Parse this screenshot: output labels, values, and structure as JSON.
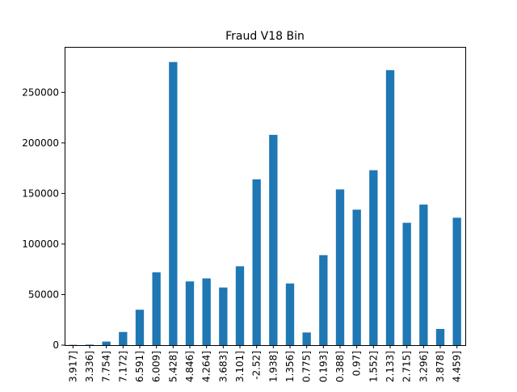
{
  "chart_data": {
    "type": "bar",
    "title": "Fraud V18 Bin",
    "xlabel": "",
    "ylabel": "",
    "categories": [
      "3.917]",
      "3.336]",
      "7.754]",
      "7.172]",
      "6.591]",
      "6.009]",
      "5.428]",
      "4.846]",
      "4.264]",
      "3.683]",
      "3.101]",
      "-2.52]",
      "1.938]",
      "1.356]",
      "0.775]",
      "0.193]",
      "0.388]",
      "0.97]",
      "1.552]",
      "2.133]",
      "2.715]",
      "3.296]",
      "3.878]",
      "4.459]"
    ],
    "values": [
      300,
      500,
      3500,
      13000,
      35000,
      72000,
      280000,
      63000,
      66000,
      57000,
      78000,
      164000,
      208000,
      61000,
      12500,
      89000,
      154000,
      134000,
      173000,
      272000,
      121000,
      139000,
      16000,
      126000
    ],
    "ylim": [
      0,
      295000
    ],
    "yticks": [
      0,
      50000,
      100000,
      150000,
      200000,
      250000
    ],
    "ytick_labels": [
      "0",
      "50000",
      "100000",
      "150000",
      "200000",
      "250000"
    ],
    "bar_color": "#1f77b4",
    "grid": false,
    "legend": "none"
  }
}
